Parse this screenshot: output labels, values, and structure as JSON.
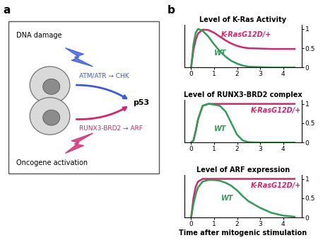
{
  "panel_a": {
    "label": "a",
    "stimuli": [
      {
        "text": "DNA damage",
        "color": "#3b5bdb"
      },
      {
        "text": "Oncogene activation",
        "color": "#d6246e"
      }
    ],
    "pathways": [
      {
        "text": "ATM/ATR → CHK",
        "color": "#3b5bdb"
      },
      {
        "text": "RUNX3-BRD2 → ARF",
        "color": "#d6246e"
      }
    ],
    "target": "p53"
  },
  "panel_b": {
    "label": "b"
  },
  "chart_data": [
    {
      "type": "line",
      "title": "Level of K-Ras Activity",
      "x": [
        0,
        0.1,
        0.2,
        0.3,
        0.5,
        0.75,
        1,
        1.25,
        1.5,
        1.75,
        2,
        2.25,
        2.5,
        3,
        3.5,
        4,
        4.5
      ],
      "series": [
        {
          "name": "K-RasG12D/+",
          "color": "#d6246e",
          "values": [
            0,
            0.45,
            0.72,
            0.88,
            0.98,
            0.97,
            0.9,
            0.8,
            0.7,
            0.62,
            0.56,
            0.52,
            0.5,
            0.49,
            0.48,
            0.48,
            0.48
          ]
        },
        {
          "name": "WT",
          "color": "#2e9e55",
          "values": [
            0,
            0.6,
            0.9,
            1.0,
            0.95,
            0.8,
            0.6,
            0.42,
            0.28,
            0.17,
            0.1,
            0.05,
            0.02,
            0.01,
            0,
            0,
            0
          ]
        }
      ],
      "xlim": [
        -0.3,
        4.8
      ],
      "ylim": [
        0,
        1.1
      ],
      "xticks": [
        0,
        1,
        2,
        3,
        4
      ],
      "yticks": [
        0,
        0.5,
        1
      ]
    },
    {
      "type": "line",
      "title": "Level of RUNX3-BRD2 complex",
      "x": [
        0,
        0.1,
        0.2,
        0.3,
        0.5,
        0.75,
        1,
        1.25,
        1.5,
        1.75,
        2,
        2.25,
        2.5,
        3,
        3.5,
        4,
        4.5
      ],
      "series": [
        {
          "name": "K-RasG12D/+",
          "color": "#d6246e",
          "values": [
            0,
            0.05,
            0.3,
            0.6,
            0.95,
            1.0,
            1.0,
            1.0,
            1.0,
            1.0,
            1.0,
            1.0,
            1.0,
            1.0,
            1.0,
            1.0,
            1.0
          ]
        },
        {
          "name": "WT",
          "color": "#2e9e55",
          "values": [
            0,
            0.05,
            0.3,
            0.6,
            0.95,
            1.0,
            0.98,
            0.95,
            0.8,
            0.5,
            0.2,
            0.05,
            0.01,
            0,
            0,
            0,
            0
          ]
        }
      ],
      "xlim": [
        -0.3,
        4.8
      ],
      "ylim": [
        0,
        1.1
      ],
      "xticks": [
        0,
        1,
        2,
        3,
        4
      ],
      "yticks": [
        0,
        0.5,
        1
      ]
    },
    {
      "type": "line",
      "title": "Level of ARF expression",
      "x_label": "Time after mitogenic stimulation",
      "x": [
        0,
        0.1,
        0.2,
        0.3,
        0.5,
        0.75,
        1,
        1.25,
        1.5,
        1.75,
        2,
        2.25,
        2.5,
        3,
        3.5,
        4,
        4.5
      ],
      "series": [
        {
          "name": "K-RasG12D/+",
          "color": "#d6246e",
          "values": [
            0,
            0.5,
            0.8,
            0.93,
            1.0,
            1.0,
            1.0,
            1.0,
            1.0,
            1.0,
            1.0,
            1.0,
            1.0,
            1.0,
            1.0,
            1.0,
            1.0
          ]
        },
        {
          "name": "WT",
          "color": "#2e9e55",
          "values": [
            0,
            0.35,
            0.6,
            0.78,
            0.93,
            0.97,
            0.97,
            0.95,
            0.9,
            0.82,
            0.7,
            0.55,
            0.42,
            0.25,
            0.12,
            0.05,
            0.02
          ]
        }
      ],
      "xlim": [
        -0.3,
        4.8
      ],
      "ylim": [
        0,
        1.1
      ],
      "xticks": [
        0,
        1,
        2,
        3,
        4
      ],
      "yticks": [
        0,
        0.5,
        1
      ]
    }
  ]
}
